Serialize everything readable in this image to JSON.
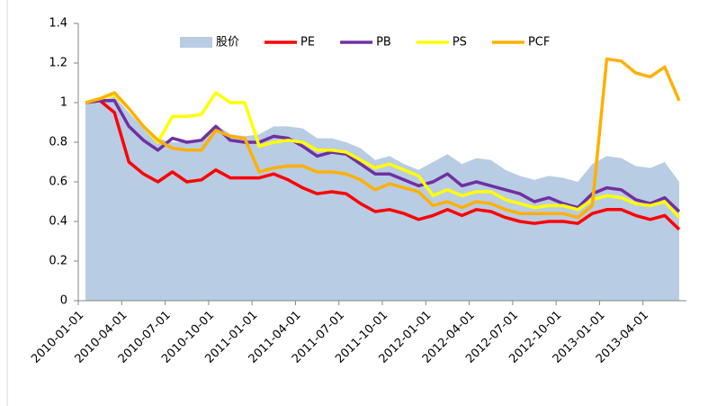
{
  "chart_data": {
    "type": "line",
    "categories": [
      "2010-01-01",
      null,
      null,
      "2010-04-01",
      null,
      null,
      "2010-07-01",
      null,
      null,
      "2010-10-01",
      null,
      null,
      "2011-01-01",
      null,
      null,
      "2011-04-01",
      null,
      null,
      "2011-07-01",
      null,
      null,
      "2011-10-01",
      null,
      null,
      "2012-01-01",
      null,
      null,
      "2012-04-01",
      null,
      null,
      "2012-07-01",
      null,
      null,
      "2012-10-01",
      null,
      null,
      "2013-01-01",
      null,
      null,
      "2013-04-01",
      null,
      null
    ],
    "series": [
      {
        "name": "股价",
        "kind": "area",
        "color": "#b8cce4",
        "values": [
          1.0,
          1.01,
          1.03,
          0.95,
          0.87,
          0.82,
          0.8,
          0.8,
          0.8,
          0.89,
          0.84,
          0.83,
          0.84,
          0.88,
          0.88,
          0.87,
          0.82,
          0.82,
          0.8,
          0.77,
          0.71,
          0.73,
          0.69,
          0.66,
          0.7,
          0.74,
          0.69,
          0.72,
          0.71,
          0.66,
          0.63,
          0.61,
          0.63,
          0.62,
          0.6,
          0.69,
          0.73,
          0.72,
          0.68,
          0.67,
          0.7,
          0.6
        ]
      },
      {
        "name": "PE",
        "kind": "line",
        "color": "#ff0000",
        "values": [
          1.0,
          1.01,
          0.95,
          0.7,
          0.64,
          0.6,
          0.65,
          0.6,
          0.61,
          0.66,
          0.62,
          0.62,
          0.62,
          0.64,
          0.61,
          0.57,
          0.54,
          0.55,
          0.54,
          0.49,
          0.45,
          0.46,
          0.44,
          0.41,
          0.43,
          0.46,
          0.43,
          0.46,
          0.45,
          0.42,
          0.4,
          0.39,
          0.4,
          0.4,
          0.39,
          0.44,
          0.46,
          0.46,
          0.43,
          0.41,
          0.43,
          0.36
        ]
      },
      {
        "name": "PB",
        "kind": "line",
        "color": "#7030a0",
        "values": [
          1.0,
          1.01,
          1.01,
          0.88,
          0.81,
          0.76,
          0.82,
          0.8,
          0.81,
          0.88,
          0.81,
          0.8,
          0.8,
          0.83,
          0.82,
          0.78,
          0.73,
          0.75,
          0.74,
          0.69,
          0.64,
          0.64,
          0.61,
          0.58,
          0.6,
          0.64,
          0.58,
          0.6,
          0.58,
          0.56,
          0.54,
          0.5,
          0.52,
          0.49,
          0.47,
          0.54,
          0.57,
          0.56,
          0.51,
          0.49,
          0.52,
          0.45
        ]
      },
      {
        "name": "PS",
        "kind": "line",
        "color": "#ffff00",
        "values": [
          1.0,
          1.02,
          1.04,
          0.97,
          0.88,
          0.8,
          0.93,
          0.93,
          0.94,
          1.05,
          1.0,
          1.0,
          0.78,
          0.8,
          0.81,
          0.8,
          0.76,
          0.76,
          0.75,
          0.71,
          0.67,
          0.69,
          0.66,
          0.63,
          0.53,
          0.56,
          0.53,
          0.55,
          0.55,
          0.51,
          0.49,
          0.47,
          0.48,
          0.48,
          0.46,
          0.51,
          0.53,
          0.52,
          0.49,
          0.48,
          0.5,
          0.42
        ]
      },
      {
        "name": "PCF",
        "kind": "line",
        "color": "#ffb000",
        "values": [
          1.0,
          1.02,
          1.05,
          0.97,
          0.88,
          0.81,
          0.77,
          0.76,
          0.76,
          0.86,
          0.83,
          0.82,
          0.65,
          0.67,
          0.68,
          0.68,
          0.65,
          0.65,
          0.64,
          0.61,
          0.56,
          0.59,
          0.57,
          0.55,
          0.48,
          0.5,
          0.47,
          0.5,
          0.49,
          0.46,
          0.44,
          0.44,
          0.44,
          0.44,
          0.42,
          0.48,
          1.22,
          1.21,
          1.15,
          1.13,
          1.18,
          1.01
        ]
      }
    ],
    "ylim": [
      0,
      1.4
    ],
    "yticks": [
      0,
      0.2,
      0.4,
      0.6,
      0.8,
      1,
      1.2,
      1.4
    ],
    "grid": false,
    "legend": "top"
  }
}
